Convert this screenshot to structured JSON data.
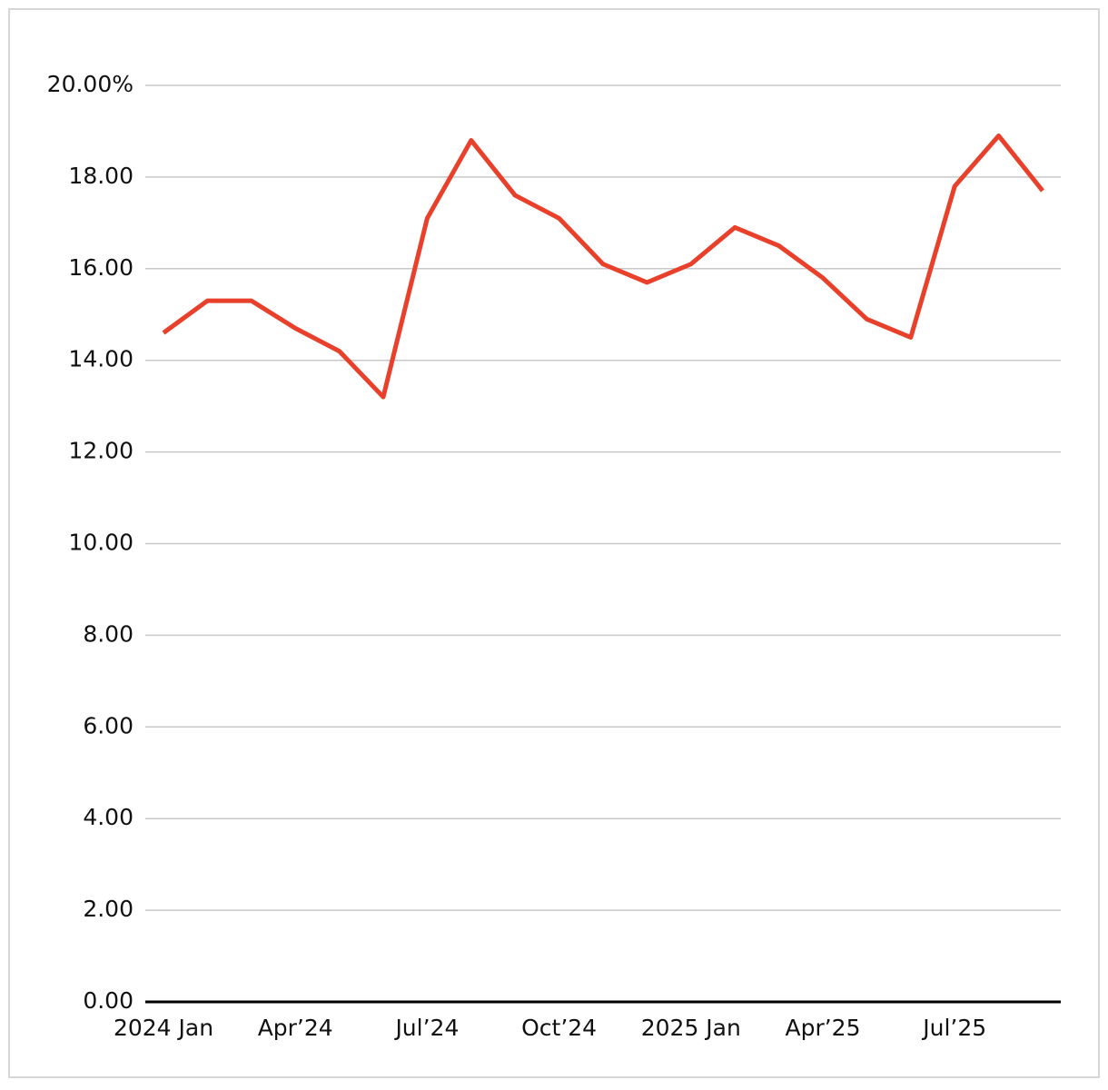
{
  "chart_data": {
    "type": "line",
    "categories": [
      "2024 Jan",
      null,
      null,
      "Apr’24",
      null,
      null,
      "Jul’24",
      null,
      null,
      "Oct’24",
      null,
      null,
      "2025 Jan",
      null,
      null,
      "Apr’25",
      null,
      null,
      "Jul’25",
      null,
      null
    ],
    "series": [
      {
        "color": "#e8402a",
        "values": [
          14.6,
          15.3,
          15.3,
          14.7,
          14.2,
          13.2,
          17.1,
          18.8,
          17.6,
          17.1,
          16.1,
          15.7,
          16.1,
          16.9,
          16.5,
          15.8,
          14.9,
          14.5,
          17.8,
          18.9,
          17.7
        ]
      }
    ],
    "ylim": [
      0,
      20
    ],
    "yticks": [
      {
        "value": 0,
        "label": "0.00"
      },
      {
        "value": 2,
        "label": "2.00"
      },
      {
        "value": 4,
        "label": "4.00"
      },
      {
        "value": 6,
        "label": "6.00"
      },
      {
        "value": 8,
        "label": "8.00"
      },
      {
        "value": 10,
        "label": "10.00"
      },
      {
        "value": 12,
        "label": "12.00"
      },
      {
        "value": 14,
        "label": "14.00"
      },
      {
        "value": 16,
        "label": "16.00"
      },
      {
        "value": 18,
        "label": "18.00"
      },
      {
        "value": 20,
        "label": "20.00%"
      }
    ],
    "grid": true
  }
}
